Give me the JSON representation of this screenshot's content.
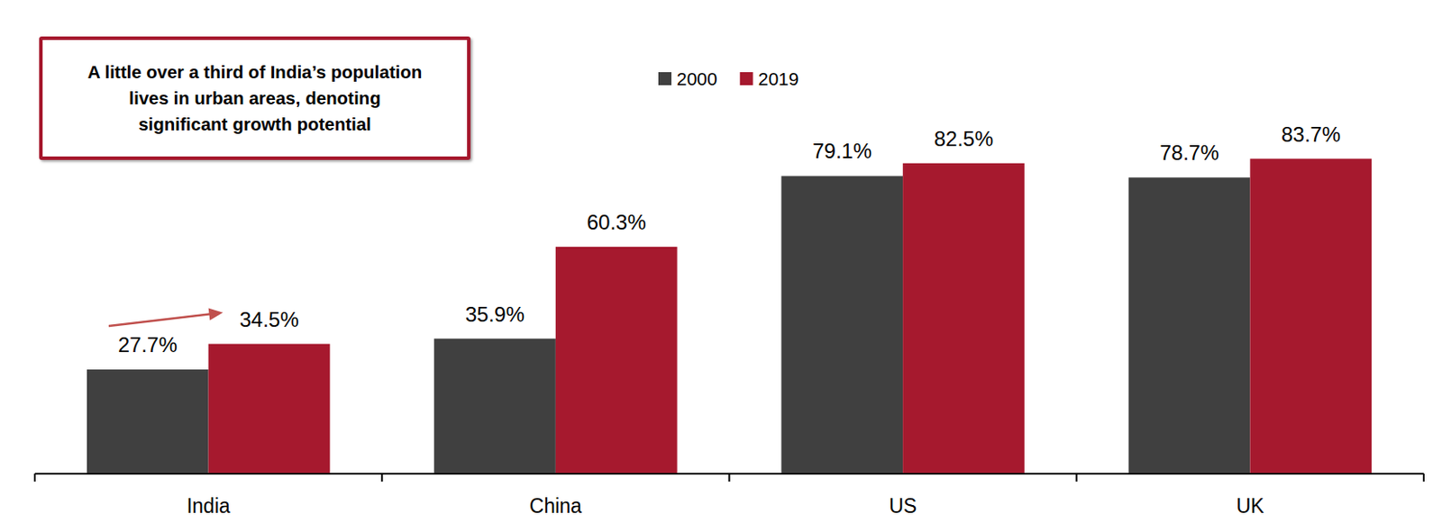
{
  "chart_data": {
    "type": "bar",
    "annotations": [
      "A little over a third of India’s population lives in urban areas, denoting significant growth potential"
    ],
    "categories": [
      "India",
      "China",
      "US",
      "UK"
    ],
    "series": [
      {
        "name": "2000",
        "color": "#404040",
        "values": [
          27.7,
          35.9,
          79.1,
          78.7
        ],
        "value_labels": [
          "27.7%",
          "35.9%",
          "79.1%",
          "78.7%"
        ]
      },
      {
        "name": "2019",
        "color": "#A6192E",
        "values": [
          34.5,
          60.3,
          82.5,
          83.7
        ],
        "value_labels": [
          "34.5%",
          "60.3%",
          "82.5%",
          "83.7%"
        ]
      }
    ],
    "ylim": [
      0,
      100
    ],
    "tick_labels": "x",
    "data_labels": true,
    "legend": "top",
    "grid": false
  }
}
